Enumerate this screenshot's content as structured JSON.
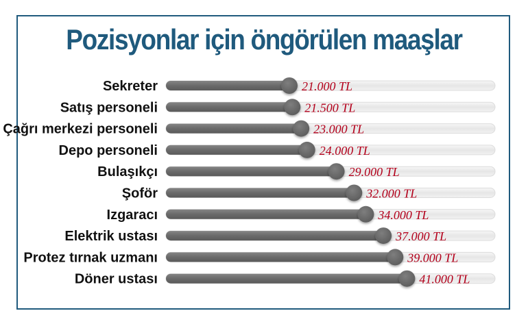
{
  "title": "Pozisyonlar için öngörülen maaşlar",
  "colors": {
    "title": "#1f5a7d",
    "frame": "#1f5a7d",
    "bar": "#6b6b6b",
    "knob": "#6b6b6b",
    "track": "#eeeeee",
    "value_text": "#b3001b",
    "label_text": "#111111"
  },
  "chart_data": {
    "type": "bar",
    "orientation": "horizontal",
    "title": "Pozisyonlar için öngörülen maaşlar",
    "xlim": [
      0,
      56000
    ],
    "categories": [
      "Sekreter",
      "Satış personeli",
      "Çağrı merkezi personeli",
      "Depo personeli",
      "Bulaşıkçı",
      "Şoför",
      "Izgaracı",
      "Elektrik ustası",
      "Protez tırnak uzmanı",
      "Döner ustası"
    ],
    "values": [
      21000,
      21500,
      23000,
      24000,
      29000,
      32000,
      34000,
      37000,
      39000,
      41000
    ],
    "value_labels": [
      "21.000 TL",
      "21.500 TL",
      "23.000 TL",
      "24.000 TL",
      "29.000 TL",
      "32.000 TL",
      "34.000 TL",
      "37.000 TL",
      "39.000 TL",
      "41.000 TL"
    ]
  }
}
